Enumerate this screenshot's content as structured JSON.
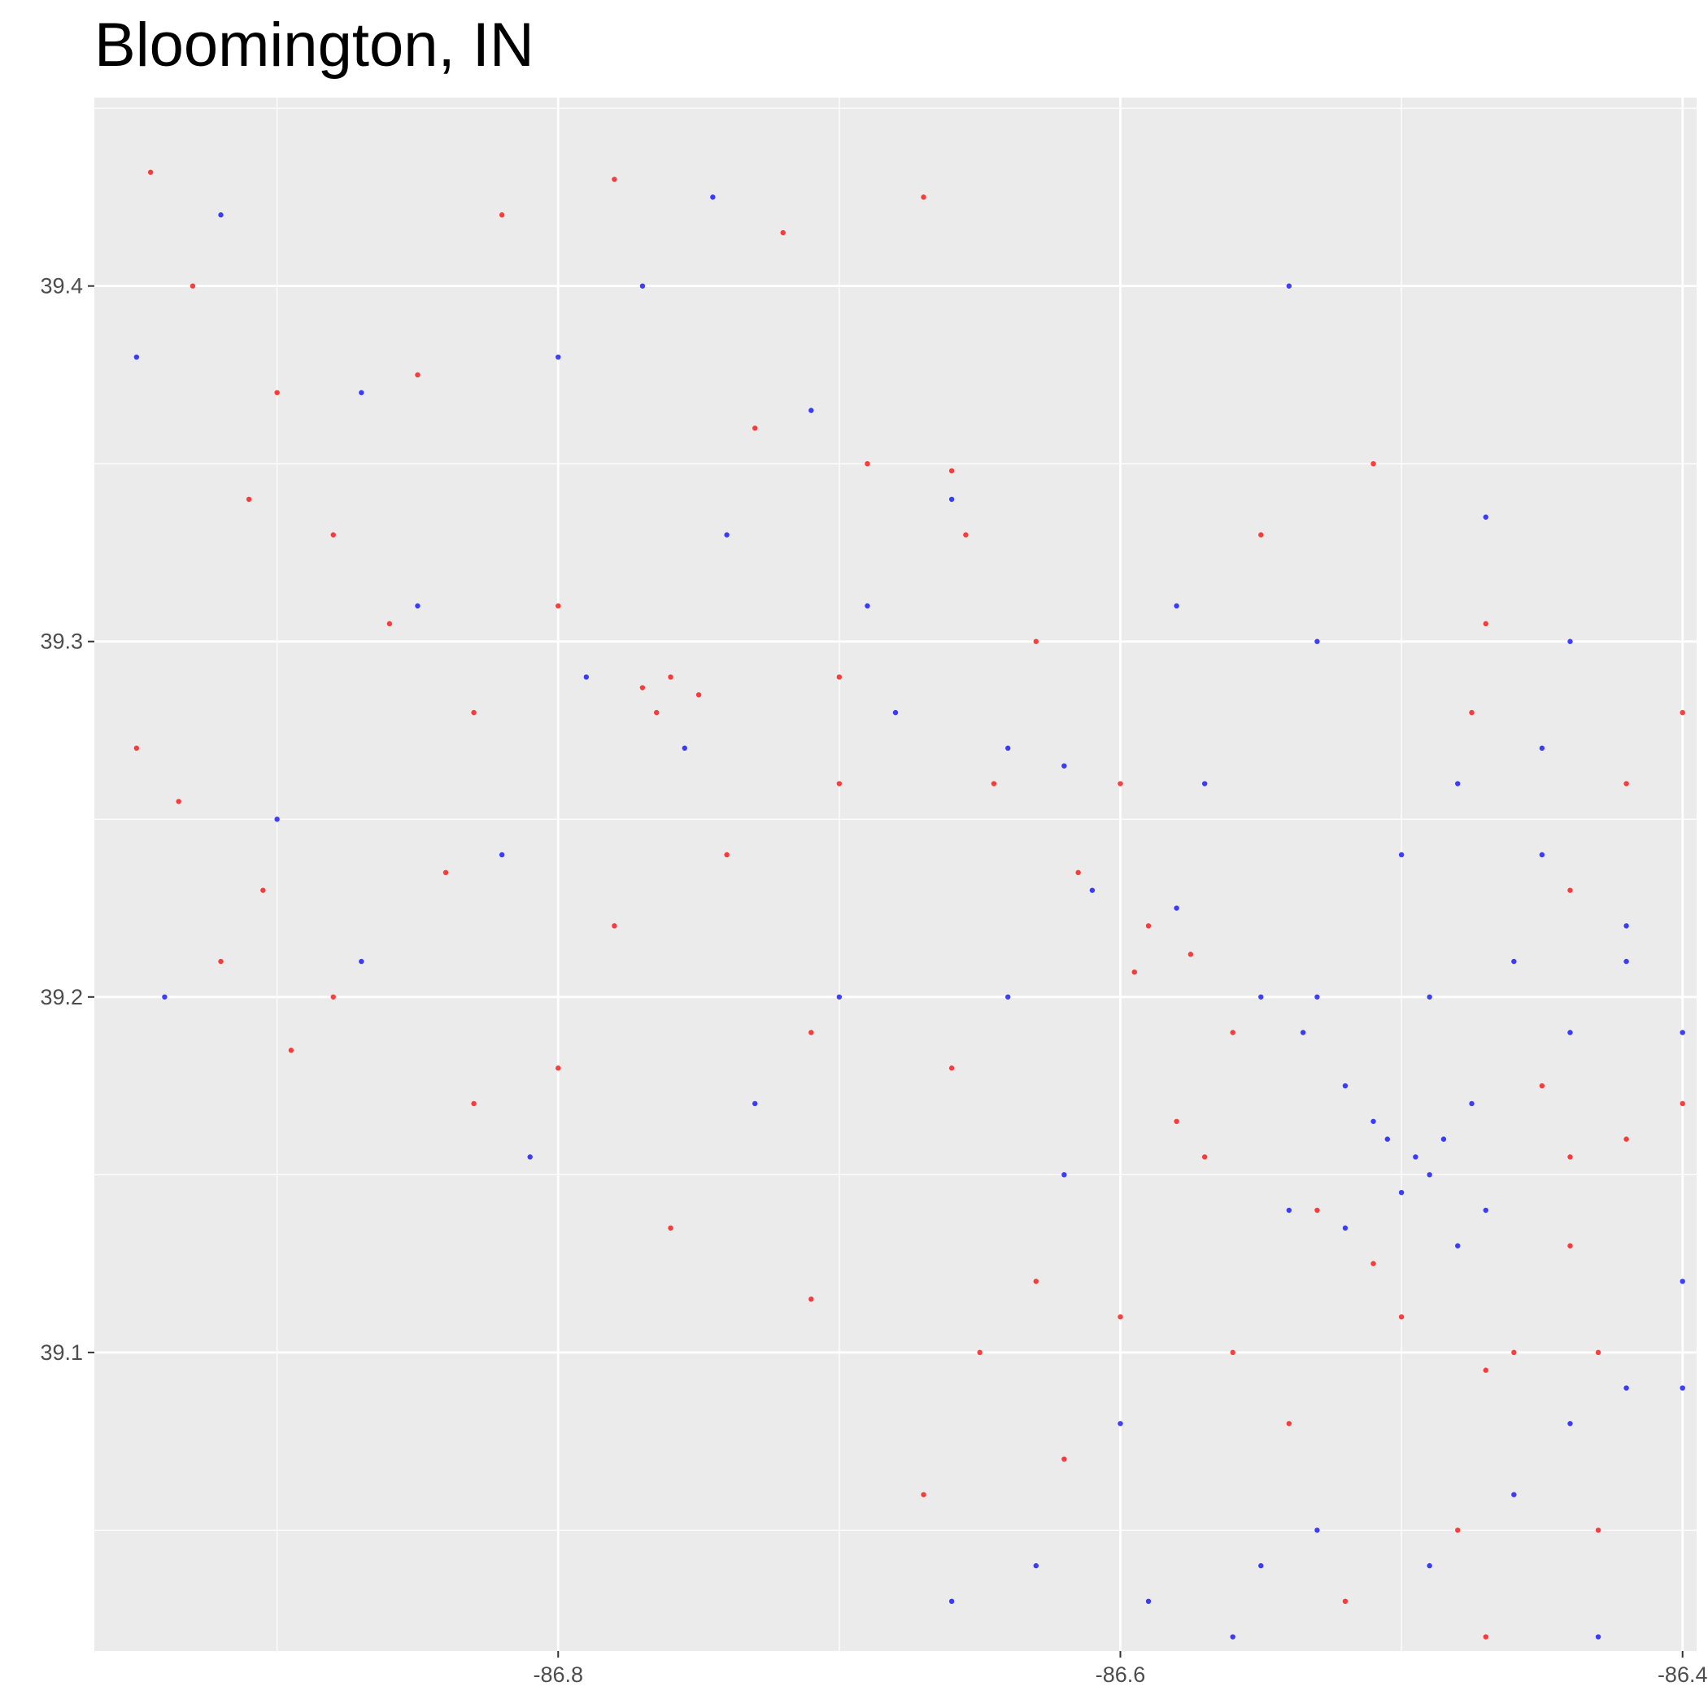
{
  "chart_data": {
    "type": "scatter",
    "title": "Bloomington, IN",
    "xlabel": "",
    "ylabel": "",
    "xlim": [
      -86.965,
      -86.395
    ],
    "ylim": [
      39.016,
      39.453
    ],
    "x_ticks": [
      -86.8,
      -86.6,
      -86.4
    ],
    "x_tick_labels": [
      "-86.8",
      "-86.6",
      "-86.4"
    ],
    "y_ticks": [
      39.1,
      39.2,
      39.3,
      39.4
    ],
    "y_tick_labels": [
      "39.1",
      "39.2",
      "39.3",
      "39.4"
    ],
    "grid": true,
    "legend": "none",
    "colors": {
      "panel_bg": "#EBEBEB",
      "grid": "#FFFFFF",
      "tick_text": "#4D4D4D",
      "tick_mark": "#333333",
      "red_series": "#FF0000",
      "blue_series": "#0000FF"
    },
    "series": [
      {
        "color": "#FF0000",
        "points": [
          [
            -86.945,
            39.432
          ],
          [
            -86.93,
            39.4
          ],
          [
            -86.9,
            39.37
          ],
          [
            -86.88,
            39.33
          ],
          [
            -86.86,
            39.305
          ],
          [
            -86.935,
            39.255
          ],
          [
            -86.92,
            39.21
          ],
          [
            -86.895,
            39.185
          ],
          [
            -86.84,
            39.235
          ],
          [
            -86.83,
            39.28
          ],
          [
            -86.8,
            39.31
          ],
          [
            -86.77,
            39.287
          ],
          [
            -86.765,
            39.28
          ],
          [
            -86.76,
            39.29
          ],
          [
            -86.75,
            39.285
          ],
          [
            -86.73,
            39.36
          ],
          [
            -86.7,
            39.29
          ],
          [
            -86.69,
            39.35
          ],
          [
            -86.66,
            39.348
          ],
          [
            -86.655,
            39.33
          ],
          [
            -86.645,
            39.26
          ],
          [
            -86.63,
            39.3
          ],
          [
            -86.6,
            39.26
          ],
          [
            -86.59,
            39.22
          ],
          [
            -86.615,
            39.235
          ],
          [
            -86.595,
            39.207
          ],
          [
            -86.575,
            39.212
          ],
          [
            -86.56,
            39.19
          ],
          [
            -86.58,
            39.165
          ],
          [
            -86.57,
            39.155
          ],
          [
            -86.53,
            39.14
          ],
          [
            -86.51,
            39.125
          ],
          [
            -86.5,
            39.11
          ],
          [
            -86.47,
            39.095
          ],
          [
            -86.46,
            39.1
          ],
          [
            -86.48,
            39.05
          ],
          [
            -86.47,
            39.02
          ],
          [
            -86.44,
            39.155
          ],
          [
            -86.45,
            39.175
          ],
          [
            -86.42,
            39.16
          ],
          [
            -86.47,
            39.305
          ],
          [
            -86.475,
            39.28
          ],
          [
            -86.51,
            39.35
          ],
          [
            -86.55,
            39.33
          ],
          [
            -86.44,
            39.23
          ],
          [
            -86.42,
            39.26
          ],
          [
            -86.67,
            39.06
          ],
          [
            -86.65,
            39.1
          ],
          [
            -86.63,
            39.12
          ],
          [
            -86.6,
            39.11
          ],
          [
            -86.56,
            39.1
          ],
          [
            -86.54,
            39.08
          ],
          [
            -86.52,
            39.03
          ],
          [
            -86.71,
            39.19
          ],
          [
            -86.74,
            39.24
          ],
          [
            -86.78,
            39.22
          ],
          [
            -86.8,
            39.18
          ],
          [
            -86.83,
            39.17
          ],
          [
            -86.88,
            39.2
          ],
          [
            -86.905,
            39.23
          ],
          [
            -86.95,
            39.27
          ],
          [
            -86.91,
            39.34
          ],
          [
            -86.85,
            39.375
          ],
          [
            -86.82,
            39.42
          ],
          [
            -86.78,
            39.43
          ],
          [
            -86.72,
            39.415
          ],
          [
            -86.67,
            39.425
          ],
          [
            -86.7,
            39.26
          ],
          [
            -86.76,
            39.135
          ],
          [
            -86.71,
            39.115
          ],
          [
            -86.66,
            39.18
          ],
          [
            -86.62,
            39.07
          ],
          [
            -86.43,
            39.05
          ],
          [
            -86.43,
            39.1
          ],
          [
            -86.44,
            39.13
          ],
          [
            -86.4,
            39.28
          ],
          [
            -86.4,
            39.17
          ]
        ]
      },
      {
        "color": "#0000FF",
        "points": [
          [
            -86.95,
            39.38
          ],
          [
            -86.92,
            39.42
          ],
          [
            -86.87,
            39.37
          ],
          [
            -86.85,
            39.31
          ],
          [
            -86.79,
            39.29
          ],
          [
            -86.755,
            39.27
          ],
          [
            -86.74,
            39.33
          ],
          [
            -86.71,
            39.365
          ],
          [
            -86.68,
            39.28
          ],
          [
            -86.64,
            39.27
          ],
          [
            -86.62,
            39.265
          ],
          [
            -86.61,
            39.23
          ],
          [
            -86.58,
            39.225
          ],
          [
            -86.55,
            39.2
          ],
          [
            -86.535,
            39.19
          ],
          [
            -86.52,
            39.175
          ],
          [
            -86.51,
            39.165
          ],
          [
            -86.505,
            39.16
          ],
          [
            -86.495,
            39.155
          ],
          [
            -86.49,
            39.15
          ],
          [
            -86.5,
            39.145
          ],
          [
            -86.485,
            39.16
          ],
          [
            -86.475,
            39.17
          ],
          [
            -86.47,
            39.14
          ],
          [
            -86.48,
            39.13
          ],
          [
            -86.52,
            39.135
          ],
          [
            -86.54,
            39.14
          ],
          [
            -86.53,
            39.2
          ],
          [
            -86.49,
            39.2
          ],
          [
            -86.46,
            39.21
          ],
          [
            -86.44,
            39.19
          ],
          [
            -86.42,
            39.21
          ],
          [
            -86.4,
            39.19
          ],
          [
            -86.4,
            39.12
          ],
          [
            -86.42,
            39.09
          ],
          [
            -86.44,
            39.08
          ],
          [
            -86.46,
            39.06
          ],
          [
            -86.49,
            39.04
          ],
          [
            -86.53,
            39.05
          ],
          [
            -86.55,
            39.04
          ],
          [
            -86.59,
            39.03
          ],
          [
            -86.63,
            39.04
          ],
          [
            -86.66,
            39.03
          ],
          [
            -86.62,
            39.15
          ],
          [
            -86.64,
            39.2
          ],
          [
            -86.57,
            39.26
          ],
          [
            -86.53,
            39.3
          ],
          [
            -86.48,
            39.26
          ],
          [
            -86.5,
            39.24
          ],
          [
            -86.45,
            39.24
          ],
          [
            -86.42,
            39.22
          ],
          [
            -86.47,
            39.335
          ],
          [
            -86.54,
            39.4
          ],
          [
            -86.66,
            39.34
          ],
          [
            -86.7,
            39.2
          ],
          [
            -86.73,
            39.17
          ],
          [
            -86.82,
            39.24
          ],
          [
            -86.87,
            39.21
          ],
          [
            -86.94,
            39.2
          ],
          [
            -86.9,
            39.25
          ],
          [
            -86.8,
            39.38
          ],
          [
            -86.77,
            39.4
          ],
          [
            -86.745,
            39.425
          ],
          [
            -86.81,
            39.155
          ],
          [
            -86.43,
            39.02
          ],
          [
            -86.4,
            39.09
          ],
          [
            -86.45,
            39.27
          ],
          [
            -86.58,
            39.31
          ],
          [
            -86.44,
            39.3
          ],
          [
            -86.69,
            39.31
          ],
          [
            -86.6,
            39.08
          ],
          [
            -86.56,
            39.02
          ]
        ]
      }
    ]
  }
}
